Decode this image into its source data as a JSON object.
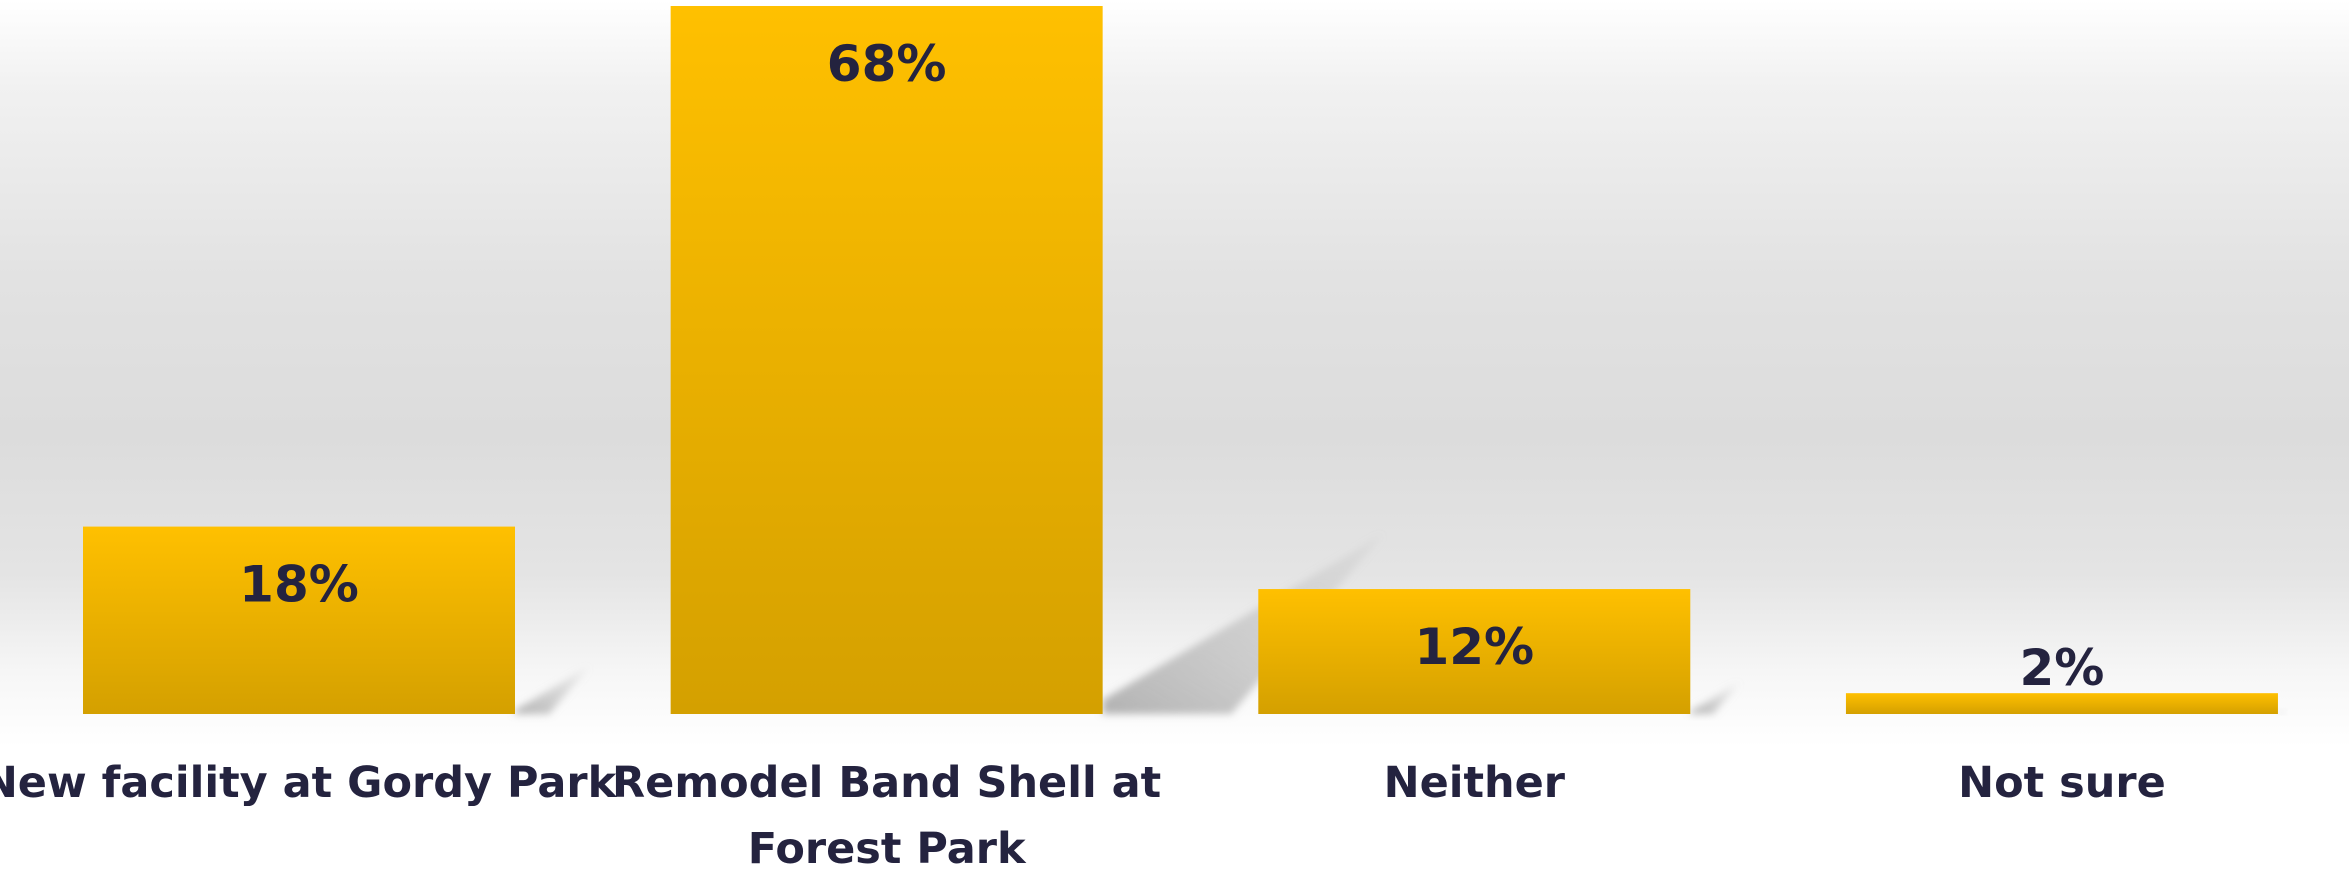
{
  "chart_data": {
    "type": "bar",
    "title": "",
    "xlabel": "",
    "ylabel": "",
    "categories": [
      [
        "New facility at Gordy Park"
      ],
      [
        "Remodel Band Shell at",
        "Forest Park"
      ],
      [
        "Neither"
      ],
      [
        "Not sure"
      ]
    ],
    "values": [
      18,
      68,
      12,
      2
    ],
    "value_labels": [
      "18%",
      "68%",
      "12%",
      "2%"
    ],
    "ylim": [
      0,
      68
    ],
    "grid": false,
    "legend": "none",
    "colors": {
      "bar_top": "#ffc000",
      "bar_bottom": "#d4a000",
      "label_text": "#24233f",
      "shadow": "#9a9a9a"
    }
  }
}
